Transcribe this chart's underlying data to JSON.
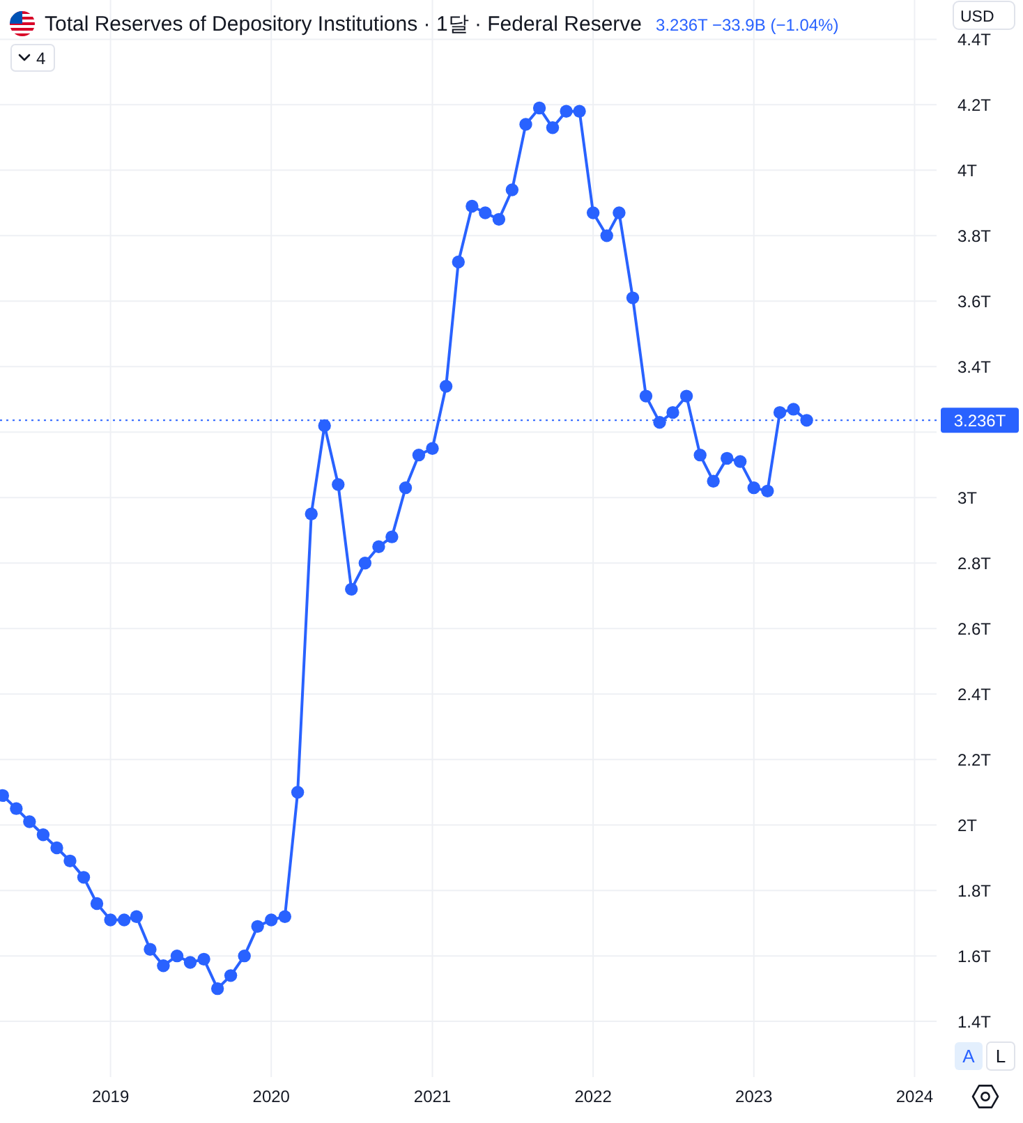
{
  "chart_data": {
    "type": "line",
    "title": "Total Reserves of Depository Institutions · 1달 · Federal Reserve",
    "subtitle": "3.236T −33.9B (−1.04%)",
    "ylabel": "USD",
    "x": [
      "2018-05",
      "2018-06",
      "2018-07",
      "2018-08",
      "2018-09",
      "2018-10",
      "2018-11",
      "2018-12",
      "2019-01",
      "2019-02",
      "2019-03",
      "2019-04",
      "2019-05",
      "2019-06",
      "2019-07",
      "2019-08",
      "2019-09",
      "2019-10",
      "2019-11",
      "2019-12",
      "2020-01",
      "2020-02",
      "2020-03",
      "2020-04",
      "2020-05",
      "2020-06",
      "2020-07",
      "2020-08",
      "2020-09",
      "2020-10",
      "2020-11",
      "2020-12",
      "2021-01",
      "2021-02",
      "2021-03",
      "2021-04",
      "2021-05",
      "2021-06",
      "2021-07",
      "2021-08",
      "2021-09",
      "2021-10",
      "2021-11",
      "2021-12",
      "2022-01",
      "2022-02",
      "2022-03",
      "2022-04",
      "2022-05",
      "2022-06",
      "2022-07",
      "2022-08",
      "2022-09",
      "2022-10",
      "2022-11",
      "2022-12",
      "2023-01",
      "2023-02",
      "2023-03",
      "2023-04",
      "2023-05"
    ],
    "series": [
      {
        "color": "#2962ff",
        "values": [
          2.09,
          2.05,
          2.01,
          1.97,
          1.93,
          1.89,
          1.84,
          1.76,
          1.71,
          1.71,
          1.72,
          1.62,
          1.57,
          1.6,
          1.58,
          1.59,
          1.5,
          1.54,
          1.6,
          1.69,
          1.71,
          1.72,
          2.1,
          2.95,
          3.22,
          3.04,
          2.72,
          2.8,
          2.85,
          2.88,
          3.03,
          3.13,
          3.15,
          3.34,
          3.72,
          3.89,
          3.87,
          3.85,
          3.94,
          4.14,
          4.19,
          4.13,
          4.18,
          4.18,
          3.87,
          3.8,
          3.87,
          3.61,
          3.31,
          3.23,
          3.26,
          3.31,
          3.13,
          3.05,
          3.12,
          3.11,
          3.03,
          3.02,
          3.26,
          3.27,
          3.236
        ]
      }
    ],
    "xlim": [
      "2018-04-25",
      "2024-02-20"
    ],
    "xticks": [
      {
        "value": "2019-01",
        "label": "2019"
      },
      {
        "value": "2020-01",
        "label": "2020"
      },
      {
        "value": "2021-01",
        "label": "2021"
      },
      {
        "value": "2022-01",
        "label": "2022"
      },
      {
        "value": "2023-01",
        "label": "2023"
      },
      {
        "value": "2024-01",
        "label": "2024"
      }
    ],
    "ylim": [
      1.23,
      4.52
    ],
    "yticks": [
      {
        "value": 1.4,
        "label": "1.4T"
      },
      {
        "value": 1.6,
        "label": "1.6T"
      },
      {
        "value": 1.8,
        "label": "1.8T"
      },
      {
        "value": 2,
        "label": "2T"
      },
      {
        "value": 2.2,
        "label": "2.2T"
      },
      {
        "value": 2.4,
        "label": "2.4T"
      },
      {
        "value": 2.6,
        "label": "2.6T"
      },
      {
        "value": 2.8,
        "label": "2.8T"
      },
      {
        "value": 3,
        "label": "3T"
      },
      {
        "value": 3.2,
        "label": null
      },
      {
        "value": 3.4,
        "label": "3.4T"
      },
      {
        "value": 3.6,
        "label": "3.6T"
      },
      {
        "value": 3.8,
        "label": "3.8T"
      },
      {
        "value": 4,
        "label": "4T"
      },
      {
        "value": 4.2,
        "label": "4.2T"
      },
      {
        "value": 4.4,
        "label": "4.4T"
      }
    ],
    "grid": true,
    "marker": "circle",
    "line_style": "solid",
    "ref_lines": [
      {
        "axis": "y",
        "value": 3.236,
        "label": "3.236T",
        "color": "#2962ff",
        "line_style": "dotted"
      }
    ],
    "annotations": [
      "4",
      "A",
      "L"
    ]
  }
}
